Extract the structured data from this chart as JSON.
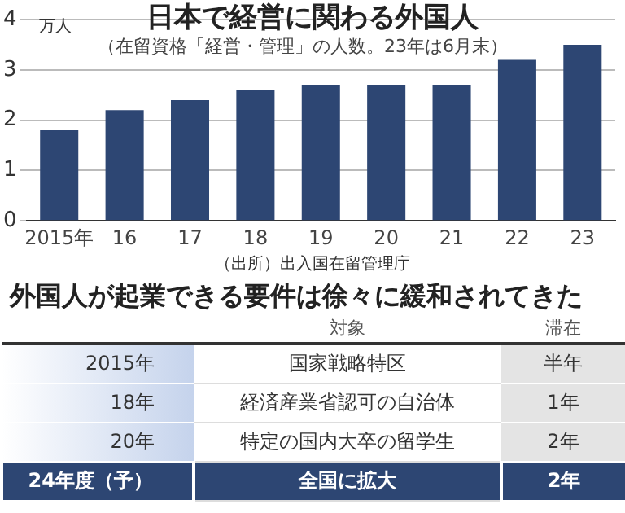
{
  "chart_data": [
    {
      "type": "bar",
      "title": "日本で経営に関わる外国人",
      "subtitle": "（在留資格「経営・管理」の人数。23年は6月末）",
      "ylabel": "万人",
      "categories": [
        "2015年",
        "16",
        "17",
        "18",
        "19",
        "20",
        "21",
        "22",
        "23"
      ],
      "values": [
        1.8,
        2.2,
        2.4,
        2.6,
        2.7,
        2.7,
        2.7,
        3.2,
        3.5
      ],
      "color": "#2d4673",
      "ylim": [
        0,
        4
      ],
      "yticks": [
        0,
        1,
        2,
        3,
        4
      ],
      "grid": "y",
      "annotations": [
        "（出所）出入国在留管理庁"
      ]
    },
    {
      "type": "other",
      "title": "外国人が起業できる要件は徐々に緩和されてきた",
      "annotations": [
        "対象",
        "滞在",
        "2015年",
        "国家戦略特区",
        "半年",
        "18年",
        "経済産業省認可の自治体",
        "1年",
        "20年",
        "特定の国内大卒の留学生",
        "2年",
        "24年度（予）",
        "全国に拡大",
        "2年"
      ]
    }
  ]
}
